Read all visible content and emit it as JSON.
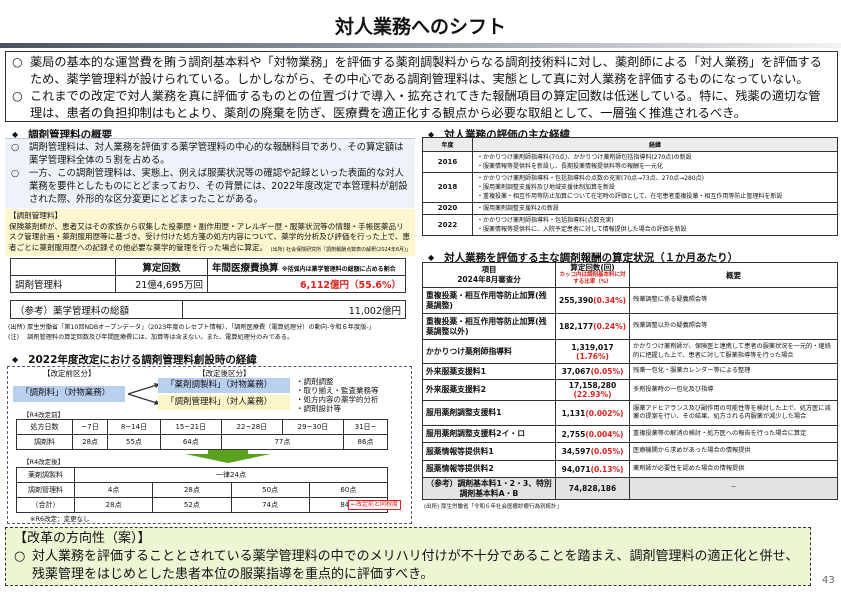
{
  "title": "対人業務へのシフト",
  "intro": [
    "薬局の基本的な運営費を賄う調剤基本料や「対物業務」を評価する薬剤調製料からなる調剤技術料に対し、薬剤師による「対人業務」を評価するため、薬学管理料が設けられている。しかしながら、その中心である調剤管理料は、実態として真に対人業務を評価するものになっていない。",
    "これまでの改定で対人業務を真に評価するものとの位置づけで導入・拡充されてきた報酬項目の算定回数は低迷している。特に、残薬の適切な管理は、患者の負担抑制はもとより、薬剤の廃棄を防ぎ、医療費を適正化する観点から必要な取組として、一層強く推進されるべき。"
  ],
  "bullet": "○",
  "diamond": "◆",
  "overview": {
    "heading": "調剤管理料の概要",
    "items": [
      "調剤管理料は、対人業務を評価する薬学管理料の中心的な報酬科目であり、その算定額は薬学管理料全体の５割を占める。",
      "一方、この調剤管理料は、実態上、例えば服薬状況等の確認や記録といった表面的な対人業務を要件としたものにとどまっており、その背景には、2022年度改定で本管理料が創設された際、外形的な区分変更にとどまったことがある。"
    ]
  },
  "definition": {
    "title": "【調剤管理料】",
    "text": "保険薬剤師が、患者又はその家族から収集した投薬歴・副作用歴・アレルギー歴・服薬状況等の情報・手帳医薬品リスク管理計画・薬剤服用歴等に基づき、受け付けた処方箋の処方内容について、薬学的分析及び評価を行った上で、患者ごとに薬剤服用歴への記録その他必要な薬学的管理を行った場合に算定。",
    "source": "(出所) 社会保険研究所「調剤報酬点数表の解釈(2024年6月)」"
  },
  "stats": {
    "col_count": "算定回数",
    "col_cost": "年間医療費換算",
    "col_note": "※括弧内は薬学管理料の総額に占める割合",
    "row_label": "調剤管理料",
    "count": "21億4,695万回",
    "cost": "6,112億円（55.6%）",
    "ref_label": "（参考）薬学管理料の総額",
    "ref_value": "11,002億円"
  },
  "notes": [
    "(出所) 厚生労働省「第10回NDBオープンデータ」（2023年度のレセプト情報）、「調剤医療費（電算処理分）の動向-令和６年度版-」",
    "(注)　 調剤管理料の算定回数及び年間医療費には、加算等は含まない。また、電算処理分のみである。"
  ],
  "history2022": {
    "heading": "2022年度改定における調剤管理料創設時の経緯",
    "before_label": "【改定前区分】",
    "after_label": "【改定後区分】",
    "before_chip": "「調剤料」（対物業務）",
    "after_chip1": "「薬剤調製料」（対物業務）",
    "after_chip2": "「調剤管理料」（対人業務）",
    "list": [
      "・調剤調整",
      "・取り揃え・監査業務等",
      "・処方内容の薬学的分析",
      "・調剤設計等"
    ],
    "pre_title": "【R4改定前】",
    "pre_head": [
      "処方日数",
      "~7日",
      "8~14日",
      "15~21日",
      "22~28日",
      "29~30日",
      "31日~"
    ],
    "pre_row": [
      "調剤料",
      "28点",
      "55点",
      "64点",
      "77点",
      "86点"
    ],
    "post_title": "【R4改定後】",
    "post_rows": [
      [
        "薬剤調製料",
        "一律24点"
      ],
      [
        "調剤管理料",
        "4点",
        "28点",
        "50点",
        "60点"
      ],
      [
        "（合計）",
        "28点",
        "52点",
        "74点",
        "84点"
      ]
    ],
    "post_note": "←改定前と同程度",
    "r6_note": "※R6改定：変更なし"
  },
  "timeline": {
    "heading": "対人業務の評価の主な経緯",
    "col_year": "年度",
    "col_desc": "経緯",
    "rows": [
      {
        "year": "2016",
        "items": [
          "・かかりつけ薬剤師指導料(70点)、かかりつけ薬剤師包括指導料(270点)の新設",
          "・服薬情報等提供料を新設し、長期投薬情報提供料等の報酬を一元化"
        ]
      },
      {
        "year": "2018",
        "items": [
          "・かかりつけ薬剤師指導料・包括指導料の点数の充実(70点→73点、270点→280点)",
          "・服用薬剤調整支援料及び地域支援体制加算を新設",
          "・重複投薬・相互作用等防止加算について在宅時の評価として、在宅患者重複投薬・相互作用等防止管理料を新設"
        ]
      },
      {
        "year": "2020",
        "items": [
          "・服用薬剤調整支援料2の新設"
        ]
      },
      {
        "year": "2022",
        "items": [
          "・かかりつけ薬剤師指導料・包括指導料(点数充実)",
          "・服薬情報等提供料に、入院予定患者に対して情報提供した場合の評価を新設"
        ]
      }
    ]
  },
  "calc": {
    "heading": "対人業務を評価する主な調剤報酬の算定状況（１か月あたり）",
    "col_item": "項目\n2024年8月審査分",
    "col_count": "算定回数(回)",
    "col_count_note": "カッコ内は調剤基本料に対する比率（%）",
    "col_summary": "概要",
    "rows": [
      {
        "item": "重複投薬・相互作用等防止加算(残薬調整)",
        "count": "255,390",
        "pct": "(0.34%)",
        "summary": "残薬調整に係る疑義照会等"
      },
      {
        "item": "重複投薬・相互作用等防止加算(残薬調整以外)",
        "count": "182,177",
        "pct": "(0.24%)",
        "summary": "残薬調整以外の疑義照会等"
      },
      {
        "item": "かかりつけ薬剤師指導料",
        "count": "1,319,017",
        "pct": "(1.76%)",
        "summary": "かかりつけ薬剤師が、保険医と連携して患者の服薬状況を一元的・継続的に把握した上で、患者に対して服薬指導等を行った場合"
      },
      {
        "item": "外来服薬支援料1",
        "count": "37,067",
        "pct": "(0.05%)",
        "summary": "残薬一包化・服薬カレンダー等による整理"
      },
      {
        "item": "外来服薬支援料2",
        "count": "17,158,280",
        "pct": "(22.93%)",
        "summary": "多剤投薬時の一包化及び指導"
      },
      {
        "item": "服用薬剤調整支援料1",
        "count": "1,131",
        "pct": "(0.002%)",
        "summary": "服薬アドヒアランス及び副作用の可能性等を検討した上で、処方医に減薬の提案を行い、その結果、処方される内服薬が減少した場合"
      },
      {
        "item": "服用薬剤調整支援料2イ・ロ",
        "count": "2,755",
        "pct": "(0.004%)",
        "summary": "重複投薬等の解消の検討・処方医への報告を行った場合に算定"
      },
      {
        "item": "服薬情報等提供料1",
        "count": "34,597",
        "pct": "(0.05%)",
        "summary": "医療機関から求めがあった場合の情報提供"
      },
      {
        "item": "服薬情報等提供料2",
        "count": "94,071",
        "pct": "(0.13%)",
        "summary": "薬剤師が必要性を認めた場合の情報提供"
      },
      {
        "item": "（参考）調剤基本料1・2・3、特別調剤基本料A・B",
        "count": "74,828,186",
        "pct": "",
        "summary": "－"
      }
    ],
    "source": "(出所) 厚生労働省「令和６年社会医療診療行為別統計」"
  },
  "reform": {
    "title": "【改革の方向性（案）】",
    "text": "対人業務を評価することとされている薬学管理料の中でのメリハリ付けが不十分であることを踏まえ、調剤管理料の適正化と併せ、残薬管理をはじめとした患者本位の服薬指導を重点的に評価すべき。"
  },
  "page_number": "43",
  "colors": {
    "red": "#e0201c",
    "blue_chip": "#b8cff0",
    "yellow_chip": "#fdf4c8",
    "green_box": "#ebf6d3",
    "arrow_green": "#5aa21e"
  }
}
